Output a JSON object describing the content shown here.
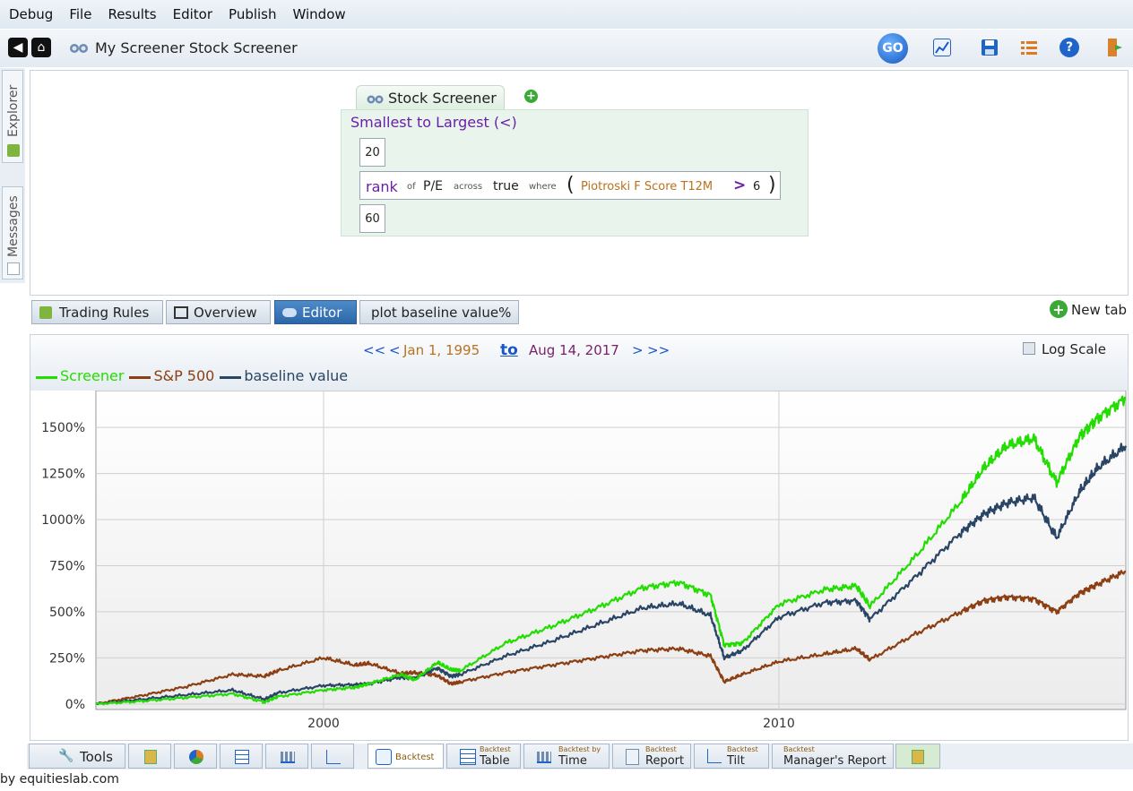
{
  "menu": [
    "Debug",
    "File",
    "Results",
    "Editor",
    "Publish",
    "Window"
  ],
  "toolbar": {
    "breadcrumb": "My Screener Stock Screener",
    "go_label": "GO"
  },
  "side_tabs": {
    "explorer": "Explorer",
    "messages": "Messages"
  },
  "rule": {
    "tab_label": "Stock Screener",
    "sort_label": "Smallest to Largest (<)",
    "min_value": "20",
    "rank_word": "rank",
    "of_word": "of",
    "metric": "P/E",
    "across_word": "across",
    "across_value": "true",
    "where_word": "where",
    "open_paren": "(",
    "condition_field": "Piotroski F Score T12M",
    "operator": ">",
    "threshold": "6",
    "close_paren": ")",
    "max_value": "60"
  },
  "editor_tabs": [
    "Trading Rules",
    "Overview",
    "Editor",
    "plot baseline value%"
  ],
  "new_tab_label": "New tab",
  "date_range": {
    "prev2": "<<",
    "prev1": "<",
    "start": "Jan 1, 1995",
    "to": "to",
    "end": "Aug 14, 2017",
    "next1": ">",
    "next2": ">>"
  },
  "log_scale_label": "Log Scale",
  "bottom_tabs": {
    "tools": "Tools",
    "backtest": "Backtest",
    "table_small": "Backtest",
    "table": "Table",
    "time_small": "Backtest by",
    "time": "Time",
    "report_small": "Backtest",
    "report": "Report",
    "tilt_small": "Backtest",
    "tilt": "Tilt",
    "manager_small": "Backtest",
    "manager": "Manager's Report"
  },
  "footer": "by equitieslab.com",
  "colors": {
    "screener": "#22dd00",
    "sp500": "#8b3f12",
    "baseline": "#2a4466",
    "accent": "#1a56c8"
  },
  "chart_data": {
    "type": "line",
    "title": "",
    "xlabel": "",
    "ylabel": "",
    "x_ticks": [
      "2000",
      "2010"
    ],
    "y_ticks": [
      "0%",
      "250%",
      "500%",
      "750%",
      "1000%",
      "1250%",
      "1500%"
    ],
    "xlim": [
      1995.0,
      2017.62
    ],
    "ylim": [
      -30,
      1700
    ],
    "legend_position": "top-left",
    "grid": true,
    "x": [
      1995.0,
      1996.0,
      1997.0,
      1998.0,
      1998.7,
      1999.0,
      2000.0,
      2000.7,
      2001.0,
      2001.7,
      2002.0,
      2002.5,
      2002.8,
      2003.0,
      2004.0,
      2005.0,
      2006.0,
      2007.0,
      2007.8,
      2008.5,
      2008.8,
      2009.2,
      2010.0,
      2011.0,
      2011.7,
      2012.0,
      2013.0,
      2014.0,
      2014.5,
      2015.0,
      2015.6,
      2016.1,
      2016.6,
      2017.0,
      2017.62
    ],
    "series": [
      {
        "name": "Screener",
        "values": [
          0,
          15,
          35,
          55,
          10,
          40,
          75,
          90,
          110,
          160,
          130,
          225,
          185,
          180,
          330,
          420,
          520,
          630,
          660,
          590,
          320,
          330,
          540,
          620,
          640,
          530,
          800,
          1100,
          1280,
          1400,
          1440,
          1200,
          1450,
          1550,
          1660
        ]
      },
      {
        "name": "S&P 500",
        "values": [
          0,
          45,
          95,
          160,
          150,
          180,
          250,
          210,
          220,
          165,
          170,
          155,
          110,
          120,
          170,
          210,
          250,
          290,
          300,
          260,
          120,
          160,
          230,
          270,
          300,
          240,
          380,
          500,
          560,
          580,
          570,
          500,
          600,
          650,
          720
        ]
      },
      {
        "name": "baseline value",
        "values": [
          0,
          25,
          50,
          75,
          25,
          60,
          100,
          105,
          110,
          145,
          140,
          195,
          150,
          160,
          260,
          340,
          430,
          520,
          545,
          480,
          250,
          290,
          470,
          550,
          560,
          460,
          690,
          930,
          1030,
          1090,
          1120,
          900,
          1150,
          1280,
          1400
        ]
      }
    ]
  }
}
